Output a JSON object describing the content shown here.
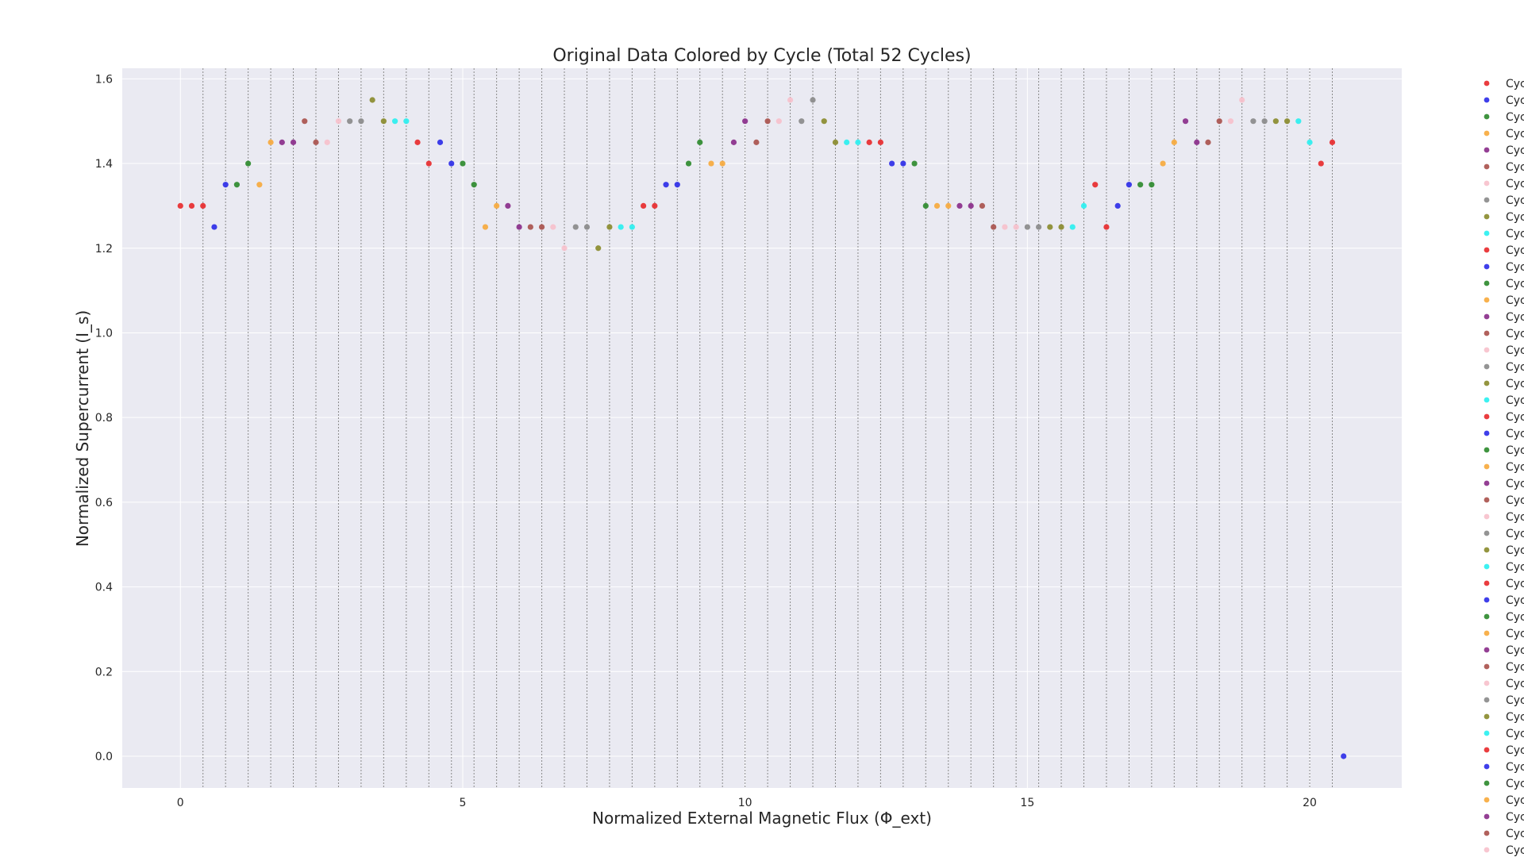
{
  "chart_data": {
    "type": "scatter",
    "title": "Original Data Colored by Cycle (Total 52 Cycles)",
    "xlabel": "Normalized External Magnetic Flux (Φ_ext)",
    "ylabel": "Normalized Supercurrent (I_s)",
    "xlim": [
      -1.03,
      21.63
    ],
    "ylim": [
      -0.075,
      1.625
    ],
    "xticks": [
      0,
      5,
      10,
      15,
      20
    ],
    "yticks": [
      0.0,
      0.2,
      0.4,
      0.6,
      0.8,
      1.0,
      1.2,
      1.4,
      1.6
    ],
    "grid": true,
    "background": "#eaeaf2",
    "legend_placement": "right (outside, clipped)",
    "palette": [
      "#e8282a",
      "#2a2ae8",
      "#2a882a",
      "#f7a83a",
      "#882a88",
      "#a8504a",
      "#f7c0cb",
      "#888888",
      "#888a2a",
      "#28f0f0"
    ],
    "cycle_boundaries": [
      0.4,
      0.8,
      1.2,
      1.6,
      2.0,
      2.4,
      2.8,
      3.2,
      3.6,
      4.0,
      4.4,
      4.8,
      5.2,
      5.6,
      6.0,
      6.4,
      6.8,
      7.2,
      7.6,
      8.0,
      8.4,
      8.8,
      9.2,
      9.6,
      10.0,
      10.4,
      10.8,
      11.2,
      11.6,
      12.0,
      12.4,
      12.8,
      13.2,
      13.6,
      14.0,
      14.4,
      14.8,
      15.2,
      15.6,
      16.0,
      16.4,
      16.8,
      17.2,
      17.6,
      18.0,
      18.4,
      18.8,
      19.2,
      19.6,
      20.0,
      20.4
    ],
    "legend_entries": [
      "Cyc",
      "Cyc",
      "Cyc",
      "Cyc",
      "Cyc",
      "Cyc",
      "Cyc",
      "Cyc",
      "Cyc",
      "Cyc",
      "Cyc",
      "Cyc",
      "Cyc",
      "Cyc",
      "Cyc",
      "Cyc",
      "Cyc",
      "Cyc",
      "Cyc",
      "Cyc",
      "Cyc",
      "Cyc",
      "Cyc",
      "Cyc",
      "Cyc",
      "Cyc",
      "Cyc",
      "Cyc",
      "Cyc",
      "Cyc",
      "Cyc",
      "Cyc",
      "Cyc",
      "Cyc",
      "Cyc",
      "Cyc",
      "Cyc",
      "Cyc",
      "Cyc",
      "Cyc",
      "Cyc",
      "Cyc",
      "Cyc",
      "Cyc",
      "Cyc",
      "Cyc",
      "Cyc",
      "Cyc"
    ],
    "points": [
      [
        0.0,
        1.3,
        0
      ],
      [
        0.2,
        1.3,
        0
      ],
      [
        0.4,
        1.3,
        0
      ],
      [
        0.6,
        1.25,
        1
      ],
      [
        0.8,
        1.35,
        1
      ],
      [
        1.0,
        1.35,
        2
      ],
      [
        1.2,
        1.4,
        2
      ],
      [
        1.4,
        1.35,
        3
      ],
      [
        1.6,
        1.45,
        3
      ],
      [
        1.8,
        1.45,
        4
      ],
      [
        2.0,
        1.45,
        4
      ],
      [
        2.2,
        1.5,
        5
      ],
      [
        2.4,
        1.45,
        5
      ],
      [
        2.6,
        1.45,
        6
      ],
      [
        2.8,
        1.5,
        6
      ],
      [
        3.0,
        1.5,
        7
      ],
      [
        3.2,
        1.5,
        7
      ],
      [
        3.4,
        1.55,
        8
      ],
      [
        3.6,
        1.5,
        8
      ],
      [
        3.8,
        1.5,
        9
      ],
      [
        4.0,
        1.5,
        9
      ],
      [
        4.2,
        1.45,
        0
      ],
      [
        4.4,
        1.4,
        0
      ],
      [
        4.6,
        1.45,
        1
      ],
      [
        4.8,
        1.4,
        1
      ],
      [
        5.0,
        1.4,
        2
      ],
      [
        5.2,
        1.35,
        2
      ],
      [
        5.4,
        1.25,
        3
      ],
      [
        5.6,
        1.3,
        3
      ],
      [
        5.8,
        1.3,
        4
      ],
      [
        6.0,
        1.25,
        4
      ],
      [
        6.2,
        1.25,
        5
      ],
      [
        6.4,
        1.25,
        5
      ],
      [
        6.6,
        1.25,
        6
      ],
      [
        6.8,
        1.2,
        6
      ],
      [
        7.0,
        1.25,
        7
      ],
      [
        7.2,
        1.25,
        7
      ],
      [
        7.4,
        1.2,
        8
      ],
      [
        7.6,
        1.25,
        8
      ],
      [
        7.8,
        1.25,
        9
      ],
      [
        8.0,
        1.25,
        9
      ],
      [
        8.2,
        1.3,
        0
      ],
      [
        8.4,
        1.3,
        0
      ],
      [
        8.6,
        1.35,
        1
      ],
      [
        8.8,
        1.35,
        1
      ],
      [
        9.0,
        1.4,
        2
      ],
      [
        9.2,
        1.45,
        2
      ],
      [
        9.4,
        1.4,
        3
      ],
      [
        9.6,
        1.4,
        3
      ],
      [
        9.8,
        1.45,
        4
      ],
      [
        10.0,
        1.5,
        4
      ],
      [
        10.2,
        1.45,
        5
      ],
      [
        10.4,
        1.5,
        5
      ],
      [
        10.6,
        1.5,
        6
      ],
      [
        10.8,
        1.55,
        6
      ],
      [
        11.0,
        1.5,
        7
      ],
      [
        11.2,
        1.55,
        7
      ],
      [
        11.4,
        1.5,
        8
      ],
      [
        11.6,
        1.45,
        8
      ],
      [
        11.8,
        1.45,
        9
      ],
      [
        12.0,
        1.45,
        9
      ],
      [
        12.2,
        1.45,
        0
      ],
      [
        12.4,
        1.45,
        0
      ],
      [
        12.6,
        1.4,
        1
      ],
      [
        12.8,
        1.4,
        1
      ],
      [
        13.0,
        1.4,
        2
      ],
      [
        13.2,
        1.3,
        2
      ],
      [
        13.4,
        1.3,
        3
      ],
      [
        13.6,
        1.3,
        3
      ],
      [
        13.8,
        1.3,
        4
      ],
      [
        14.0,
        1.3,
        4
      ],
      [
        14.2,
        1.3,
        5
      ],
      [
        14.4,
        1.25,
        5
      ],
      [
        14.6,
        1.25,
        6
      ],
      [
        14.8,
        1.25,
        6
      ],
      [
        15.0,
        1.25,
        7
      ],
      [
        15.2,
        1.25,
        7
      ],
      [
        15.4,
        1.25,
        8
      ],
      [
        15.6,
        1.25,
        8
      ],
      [
        15.8,
        1.25,
        9
      ],
      [
        16.0,
        1.3,
        9
      ],
      [
        16.2,
        1.35,
        0
      ],
      [
        16.4,
        1.25,
        0
      ],
      [
        16.6,
        1.3,
        1
      ],
      [
        16.8,
        1.35,
        1
      ],
      [
        17.0,
        1.35,
        2
      ],
      [
        17.2,
        1.35,
        2
      ],
      [
        17.4,
        1.4,
        3
      ],
      [
        17.6,
        1.45,
        3
      ],
      [
        17.8,
        1.5,
        4
      ],
      [
        18.0,
        1.45,
        4
      ],
      [
        18.2,
        1.45,
        5
      ],
      [
        18.4,
        1.5,
        5
      ],
      [
        18.6,
        1.5,
        6
      ],
      [
        18.8,
        1.55,
        6
      ],
      [
        19.0,
        1.5,
        7
      ],
      [
        19.2,
        1.5,
        7
      ],
      [
        19.4,
        1.5,
        8
      ],
      [
        19.6,
        1.5,
        8
      ],
      [
        19.8,
        1.5,
        9
      ],
      [
        20.0,
        1.45,
        9
      ],
      [
        20.2,
        1.4,
        0
      ],
      [
        20.4,
        1.45,
        0
      ],
      [
        20.6,
        0.0,
        1
      ]
    ]
  }
}
